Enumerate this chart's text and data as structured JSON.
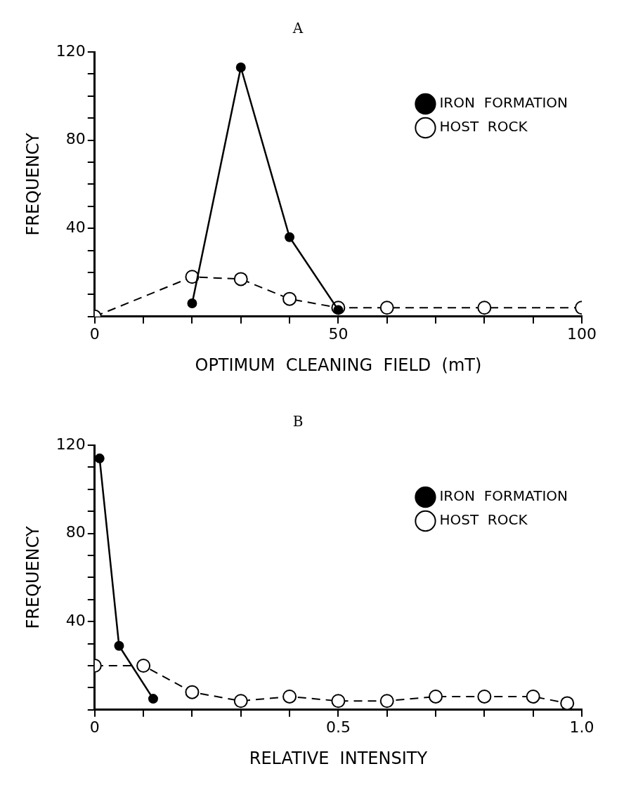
{
  "chart_data": [
    {
      "type": "line",
      "title": "A",
      "xlabel": "OPTIMUM  CLEANING  FIELD  (mT)",
      "ylabel": "FREQUENCY",
      "xlim": [
        0,
        100
      ],
      "ylim": [
        0,
        120
      ],
      "xticks": [
        0,
        {
          "value": 10,
          "label": null
        },
        {
          "value": 20,
          "label": null
        },
        {
          "value": 30,
          "label": null
        },
        {
          "value": 40,
          "label": null
        },
        50,
        {
          "value": 60,
          "label": null
        },
        {
          "value": 70,
          "label": null
        },
        {
          "value": 80,
          "label": null
        },
        {
          "value": 90,
          "label": null
        },
        100
      ],
      "yticks": [
        {
          "value": 0,
          "label": null
        },
        {
          "value": 10,
          "label": null
        },
        {
          "value": 20,
          "label": null
        },
        {
          "value": 30,
          "label": null
        },
        40,
        {
          "value": 50,
          "label": null
        },
        {
          "value": 60,
          "label": null
        },
        {
          "value": 70,
          "label": null
        },
        80,
        {
          "value": 90,
          "label": null
        },
        {
          "value": 100,
          "label": null
        },
        {
          "value": 110,
          "label": null
        },
        120
      ],
      "legend": "top right",
      "series": [
        {
          "name": "IRON  FORMATION",
          "color": "#000000",
          "x": [
            20,
            30,
            40,
            50
          ],
          "values": [
            6,
            113,
            36,
            3
          ],
          "marker": "circle",
          "line_style": "solid"
        },
        {
          "name": "HOST  ROCK",
          "color": "#000000",
          "x": [
            0,
            20,
            30,
            40,
            50,
            60,
            80,
            100
          ],
          "values": [
            0,
            18,
            17,
            8,
            4,
            4,
            4,
            4
          ],
          "marker": "circle",
          "line_style": "dashed"
        }
      ]
    },
    {
      "type": "line",
      "title": "B",
      "xlabel": "RELATIVE  INTENSITY",
      "ylabel": "FREQUENCY",
      "xlim": [
        0,
        1
      ],
      "ylim": [
        0,
        120
      ],
      "xticks": [
        0,
        {
          "value": 0.1,
          "label": null
        },
        {
          "value": 0.2,
          "label": null
        },
        {
          "value": 0.3,
          "label": null
        },
        {
          "value": 0.4,
          "label": null
        },
        0.5,
        {
          "value": 0.6,
          "label": null
        },
        {
          "value": 0.7,
          "label": null
        },
        {
          "value": 0.8,
          "label": null
        },
        {
          "value": 0.9,
          "label": null
        },
        {
          "value": 1,
          "label": "1.0"
        }
      ],
      "yticks": [
        {
          "value": 0,
          "label": null
        },
        {
          "value": 10,
          "label": null
        },
        {
          "value": 20,
          "label": null
        },
        {
          "value": 30,
          "label": null
        },
        40,
        {
          "value": 50,
          "label": null
        },
        {
          "value": 60,
          "label": null
        },
        {
          "value": 70,
          "label": null
        },
        80,
        {
          "value": 90,
          "label": null
        },
        {
          "value": 100,
          "label": null
        },
        {
          "value": 110,
          "label": null
        },
        120
      ],
      "legend": "top right",
      "series": [
        {
          "name": "IRON  FORMATION",
          "color": "#000000",
          "x": [
            0.01,
            0.05,
            0.12
          ],
          "values": [
            114,
            29,
            5
          ],
          "marker": "circle",
          "line_style": "solid"
        },
        {
          "name": "HOST  ROCK",
          "color": "#000000",
          "x": [
            0,
            0.1,
            0.2,
            0.3,
            0.4,
            0.5,
            0.6,
            0.7,
            0.8,
            0.9,
            0.97
          ],
          "values": [
            20,
            20,
            8,
            4,
            6,
            4,
            4,
            6,
            6,
            6,
            3
          ],
          "marker": "circle",
          "line_style": "dashed"
        }
      ]
    }
  ]
}
